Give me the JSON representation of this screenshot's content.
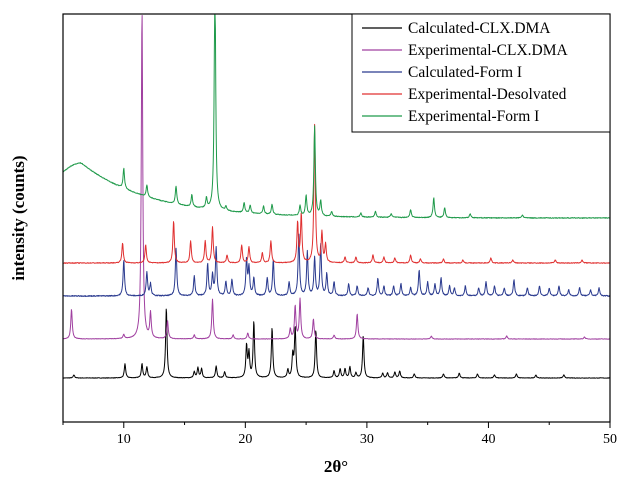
{
  "chart_data": {
    "type": "line",
    "title": "",
    "xlabel": "2θ°",
    "ylabel": "intensity (counts)",
    "xlim": [
      5,
      50
    ],
    "xticks": [
      10,
      20,
      30,
      40,
      50
    ],
    "y_tick_labels": false,
    "grid": false,
    "legend_position": "top-right",
    "series": [
      {
        "name": "Calculated-CLX.DMA",
        "color": "#000000",
        "offset": 0,
        "baseline": 3,
        "peaks": [
          [
            5.9,
            3
          ],
          [
            10.1,
            14
          ],
          [
            11.5,
            14
          ],
          [
            11.9,
            11
          ],
          [
            13.5,
            70
          ],
          [
            15.8,
            6
          ],
          [
            16.1,
            10
          ],
          [
            16.4,
            9
          ],
          [
            17.6,
            12
          ],
          [
            18.3,
            6
          ],
          [
            20.1,
            32
          ],
          [
            20.3,
            24
          ],
          [
            20.7,
            56
          ],
          [
            22.2,
            50
          ],
          [
            23.5,
            8
          ],
          [
            23.9,
            22
          ],
          [
            24.1,
            50
          ],
          [
            25.8,
            48
          ],
          [
            27.3,
            7
          ],
          [
            27.8,
            9
          ],
          [
            28.2,
            9
          ],
          [
            28.6,
            11
          ],
          [
            29.1,
            5
          ],
          [
            29.7,
            42
          ],
          [
            31.3,
            5
          ],
          [
            31.7,
            5
          ],
          [
            32.3,
            6
          ],
          [
            32.7,
            7
          ],
          [
            33.9,
            4
          ],
          [
            36.3,
            4
          ],
          [
            37.6,
            5
          ],
          [
            39.1,
            4
          ],
          [
            40.5,
            3
          ],
          [
            42.3,
            4
          ],
          [
            43.9,
            3
          ],
          [
            46.2,
            3
          ]
        ],
        "noise": 0.5
      },
      {
        "name": "Experimental-CLX.DMA",
        "color": "#a040a0",
        "offset": 40,
        "baseline": 2,
        "peaks": [
          [
            5.7,
            30
          ],
          [
            10.0,
            4
          ],
          [
            11.5,
            330
          ],
          [
            12.2,
            25
          ],
          [
            13.6,
            18
          ],
          [
            15.8,
            4
          ],
          [
            17.3,
            40
          ],
          [
            19.0,
            4
          ],
          [
            20.2,
            6
          ],
          [
            23.7,
            10
          ],
          [
            24.1,
            33
          ],
          [
            24.5,
            40
          ],
          [
            25.6,
            20
          ],
          [
            27.3,
            4
          ],
          [
            29.2,
            25
          ],
          [
            35.3,
            3
          ],
          [
            41.5,
            3
          ],
          [
            47.9,
            2
          ]
        ],
        "noise": 0.5
      },
      {
        "name": "Calculated-Form I",
        "color": "#2a3a8f",
        "offset": 83,
        "baseline": 2,
        "peaks": [
          [
            10.0,
            36
          ],
          [
            11.9,
            24
          ],
          [
            12.2,
            12
          ],
          [
            14.3,
            48
          ],
          [
            15.8,
            20
          ],
          [
            16.9,
            32
          ],
          [
            17.3,
            20
          ],
          [
            17.6,
            48
          ],
          [
            18.4,
            14
          ],
          [
            18.9,
            16
          ],
          [
            20.1,
            36
          ],
          [
            20.3,
            28
          ],
          [
            20.7,
            18
          ],
          [
            21.8,
            18
          ],
          [
            22.3,
            36
          ],
          [
            23.6,
            14
          ],
          [
            24.4,
            62
          ],
          [
            25.1,
            44
          ],
          [
            25.7,
            38
          ],
          [
            26.2,
            52
          ],
          [
            26.7,
            22
          ],
          [
            27.3,
            14
          ],
          [
            28.5,
            12
          ],
          [
            29.2,
            10
          ],
          [
            30.1,
            8
          ],
          [
            30.9,
            18
          ],
          [
            31.4,
            10
          ],
          [
            32.2,
            10
          ],
          [
            32.8,
            12
          ],
          [
            33.6,
            8
          ],
          [
            34.3,
            26
          ],
          [
            35.0,
            14
          ],
          [
            35.6,
            12
          ],
          [
            36.1,
            18
          ],
          [
            36.8,
            10
          ],
          [
            37.2,
            8
          ],
          [
            38.1,
            10
          ],
          [
            39.2,
            8
          ],
          [
            39.8,
            14
          ],
          [
            40.5,
            10
          ],
          [
            41.3,
            8
          ],
          [
            42.1,
            16
          ],
          [
            43.2,
            8
          ],
          [
            44.2,
            10
          ],
          [
            45.0,
            8
          ],
          [
            45.8,
            10
          ],
          [
            46.6,
            6
          ],
          [
            47.5,
            8
          ],
          [
            48.4,
            6
          ],
          [
            49.1,
            8
          ]
        ],
        "noise": 1.0
      },
      {
        "name": "Experimental-Desolvated",
        "color": "#e03030",
        "offset": 116,
        "baseline": 2,
        "peaks": [
          [
            9.9,
            20
          ],
          [
            11.8,
            18
          ],
          [
            14.1,
            42
          ],
          [
            15.5,
            22
          ],
          [
            16.7,
            22
          ],
          [
            17.3,
            36
          ],
          [
            18.5,
            8
          ],
          [
            19.7,
            18
          ],
          [
            20.3,
            16
          ],
          [
            21.4,
            10
          ],
          [
            22.1,
            22
          ],
          [
            24.3,
            40
          ],
          [
            24.6,
            48
          ],
          [
            25.7,
            138
          ],
          [
            26.3,
            30
          ],
          [
            26.6,
            18
          ],
          [
            28.2,
            6
          ],
          [
            29.1,
            6
          ],
          [
            30.5,
            8
          ],
          [
            31.4,
            6
          ],
          [
            32.3,
            5
          ],
          [
            33.6,
            8
          ],
          [
            34.4,
            4
          ],
          [
            36.3,
            4
          ],
          [
            37.9,
            3
          ],
          [
            40.2,
            5
          ],
          [
            42.0,
            3
          ],
          [
            45.5,
            3
          ],
          [
            47.7,
            3
          ]
        ],
        "noise": 0.8
      },
      {
        "name": "Experimental-Form I",
        "color": "#1f9a4a",
        "offset": 159,
        "baseline": 4,
        "hump": {
          "amp": 55,
          "center": 6.5,
          "width": 3.5,
          "decay": 0.11
        },
        "peaks": [
          [
            10.0,
            20
          ],
          [
            11.9,
            12
          ],
          [
            14.3,
            18
          ],
          [
            15.6,
            12
          ],
          [
            16.8,
            10
          ],
          [
            17.5,
            240
          ],
          [
            18.4,
            4
          ],
          [
            19.9,
            10
          ],
          [
            20.4,
            8
          ],
          [
            21.5,
            8
          ],
          [
            22.2,
            10
          ],
          [
            24.5,
            10
          ],
          [
            25.0,
            20
          ],
          [
            25.7,
            90
          ],
          [
            26.2,
            15
          ],
          [
            27.1,
            5
          ],
          [
            29.5,
            4
          ],
          [
            30.7,
            6
          ],
          [
            32.0,
            4
          ],
          [
            33.6,
            8
          ],
          [
            35.5,
            20
          ],
          [
            36.4,
            10
          ],
          [
            38.5,
            4
          ],
          [
            42.8,
            3
          ]
        ],
        "noise": 0.8
      }
    ]
  }
}
